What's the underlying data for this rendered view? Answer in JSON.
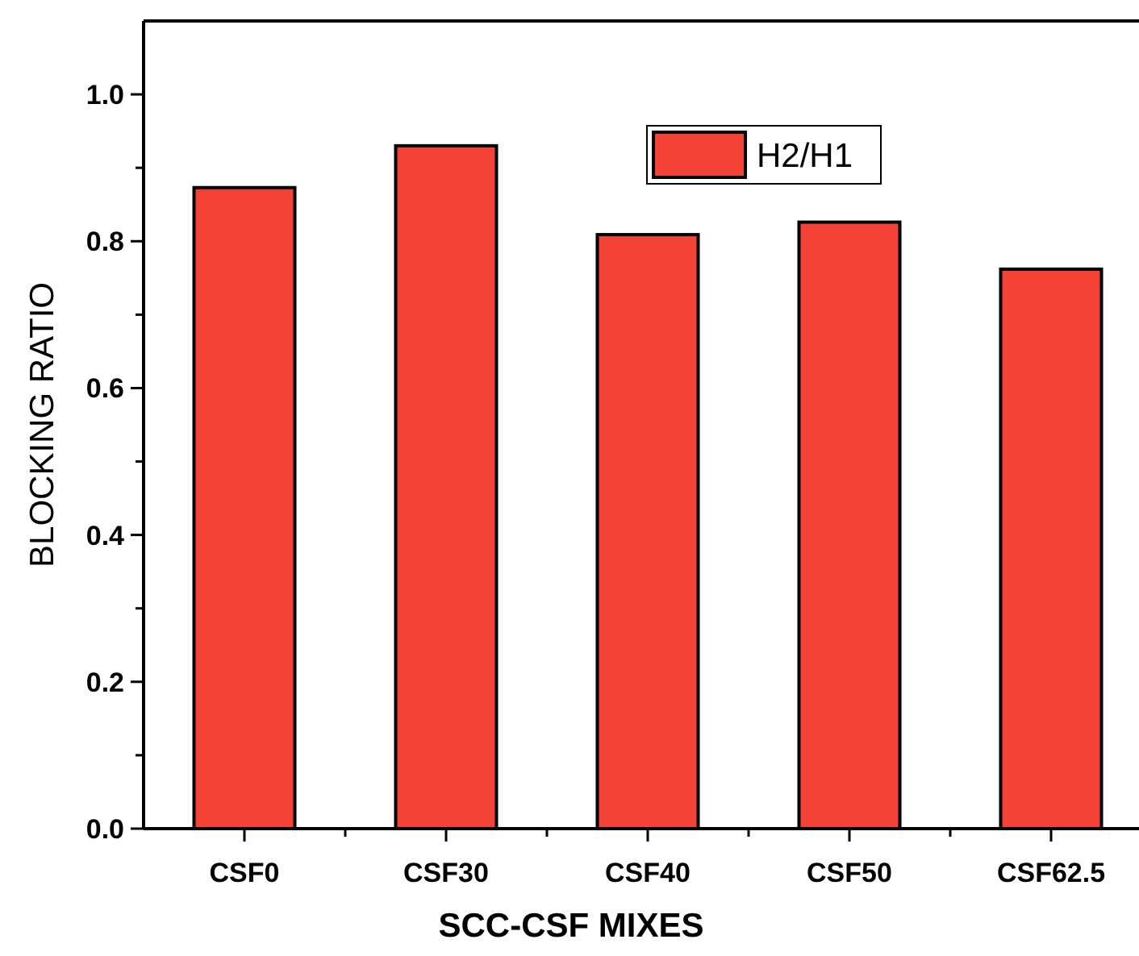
{
  "chart_data": {
    "type": "bar",
    "xlabel": "SCC-CSF MIXES",
    "ylabel": "BLOCKING RATIO",
    "categories": [
      "CSF0",
      "CSF30",
      "CSF40",
      "CSF50",
      "CSF62.5"
    ],
    "series": [
      {
        "name": "H2/H1",
        "color": "#f44336",
        "values": [
          0.873,
          0.93,
          0.809,
          0.826,
          0.762
        ]
      }
    ],
    "ylim": [
      0,
      1.1
    ],
    "yticks": [
      {
        "value": 0,
        "label": "0.0"
      },
      {
        "value": 0.1,
        "label": null
      },
      {
        "value": 0.2,
        "label": "0.2"
      },
      {
        "value": 0.3,
        "label": null
      },
      {
        "value": 0.4,
        "label": "0.4"
      },
      {
        "value": 0.5,
        "label": null
      },
      {
        "value": 0.6,
        "label": "0.6"
      },
      {
        "value": 0.7,
        "label": null
      },
      {
        "value": 0.8,
        "label": "0.8"
      },
      {
        "value": 0.9,
        "label": null
      },
      {
        "value": 1.0,
        "label": "1.0"
      }
    ],
    "legend": "top right",
    "grid": false
  }
}
